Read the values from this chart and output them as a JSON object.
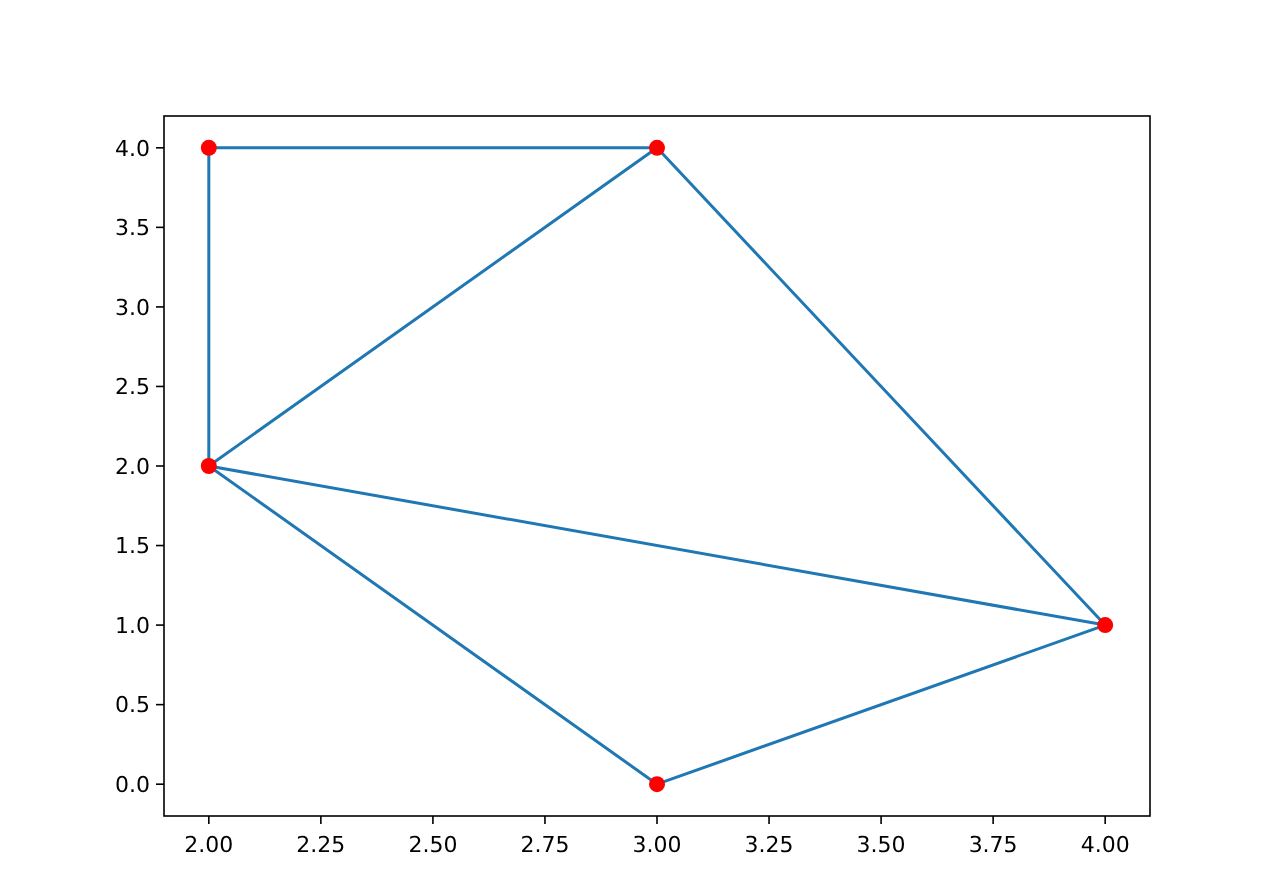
{
  "chart_data": {
    "type": "line",
    "xlim": [
      1.9,
      4.1
    ],
    "ylim": [
      -0.2,
      4.2
    ],
    "xticks": [
      {
        "value": 2,
        "label": "2.00"
      },
      {
        "value": 2.25,
        "label": "2.25"
      },
      {
        "value": 2.5,
        "label": "2.50"
      },
      {
        "value": 2.75,
        "label": "2.75"
      },
      {
        "value": 3,
        "label": "3.00"
      },
      {
        "value": 3.25,
        "label": "3.25"
      },
      {
        "value": 3.5,
        "label": "3.50"
      },
      {
        "value": 3.75,
        "label": "3.75"
      },
      {
        "value": 4,
        "label": "4.00"
      }
    ],
    "yticks": [
      {
        "value": 0,
        "label": "0.0"
      },
      {
        "value": 0.5,
        "label": "0.5"
      },
      {
        "value": 1,
        "label": "1.0"
      },
      {
        "value": 1.5,
        "label": "1.5"
      },
      {
        "value": 2,
        "label": "2.0"
      },
      {
        "value": 2.5,
        "label": "2.5"
      },
      {
        "value": 3,
        "label": "3.0"
      },
      {
        "value": 3.5,
        "label": "3.5"
      },
      {
        "value": 4,
        "label": "4.0"
      }
    ],
    "grid": false,
    "series": [
      {
        "color": "#1f77b4",
        "marker": "none",
        "x": [
          3,
          2,
          2,
          3,
          4,
          2,
          3,
          4
        ],
        "values": [
          4,
          4,
          2,
          0,
          1,
          2,
          4,
          1
        ]
      },
      {
        "type": "scatter",
        "color": "#ff0000",
        "marker": "circle",
        "x": [
          2,
          3,
          2,
          4,
          3
        ],
        "values": [
          4,
          4,
          2,
          1,
          0
        ]
      }
    ]
  }
}
